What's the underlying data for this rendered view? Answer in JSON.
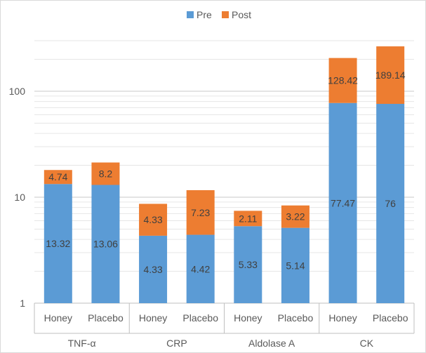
{
  "chart_data": {
    "type": "bar",
    "stacked": true,
    "y_scale": "log",
    "ylim": [
      1,
      300
    ],
    "y_ticks": [
      "1",
      "10",
      "100"
    ],
    "grid": true,
    "legend": "top",
    "groups": [
      "TNF-α",
      "CRP",
      "Aldolase A",
      "CK"
    ],
    "categories": [
      "Honey",
      "Placebo",
      "Honey",
      "Placebo",
      "Honey",
      "Placebo",
      "Honey",
      "Placebo"
    ],
    "series": [
      {
        "name": "Pre",
        "color": "#5b9bd5",
        "values": [
          13.32,
          13.06,
          4.33,
          4.42,
          5.33,
          5.14,
          77.47,
          76
        ]
      },
      {
        "name": "Post",
        "color": "#ed7d31",
        "values": [
          4.74,
          8.2,
          4.33,
          7.23,
          2.11,
          3.22,
          128.42,
          189.14
        ]
      }
    ],
    "data_labels": {
      "Pre": [
        "13.32",
        "13.06",
        "4.33",
        "4.42",
        "5.33",
        "5.14",
        "77.47",
        "76"
      ],
      "Post": [
        "4.74",
        "8.2",
        "4.33",
        "7.23",
        "2.11",
        "3.22",
        "128.42",
        "189.14"
      ]
    },
    "title": "",
    "xlabel": "",
    "ylabel": ""
  }
}
